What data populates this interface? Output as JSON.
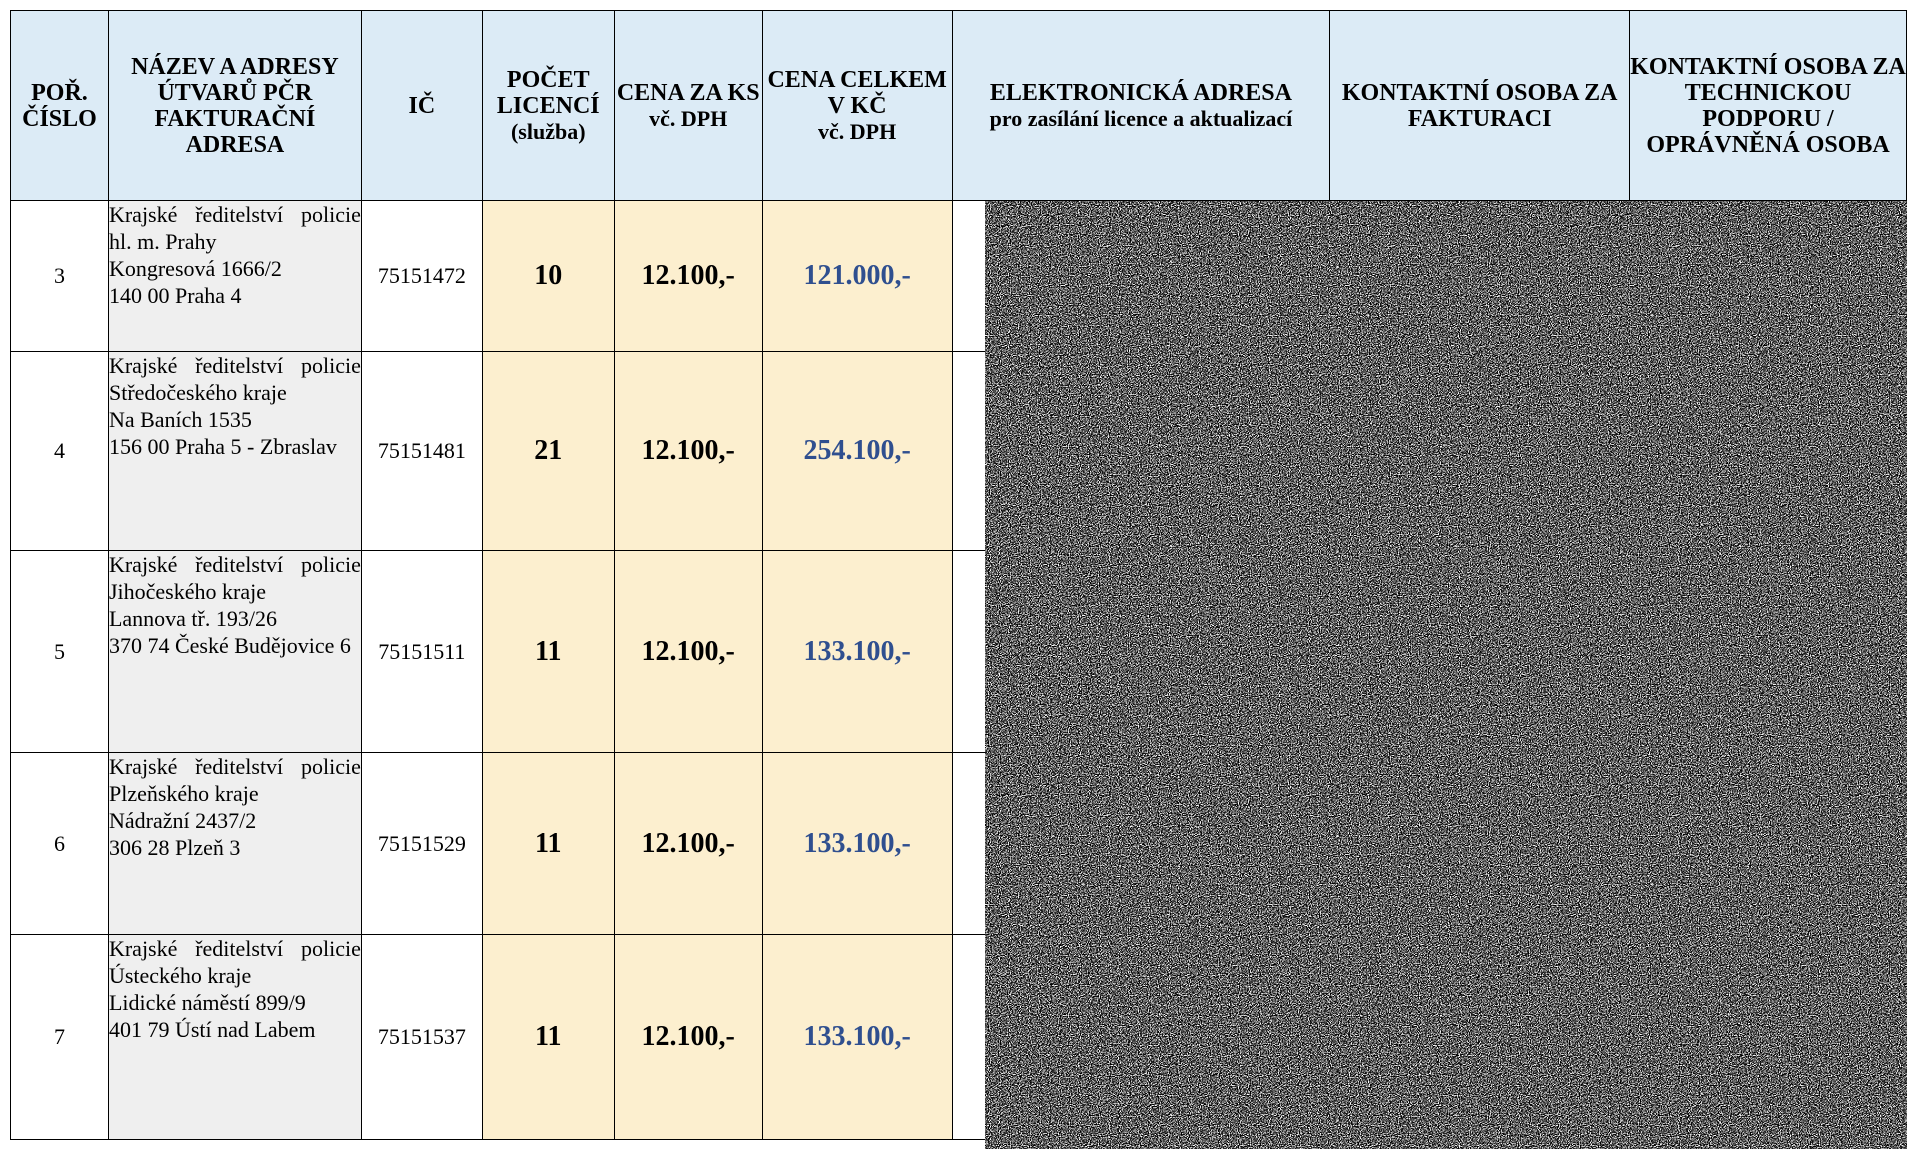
{
  "headers": {
    "order": "POŘ. ČÍSLO",
    "name": "NÁZEV A ADRESY ÚTVARŮ PČR FAKTURAČNÍ ADRESA",
    "ic": "IČ",
    "count": "POČET LICENCÍ",
    "count_sub": "(služba)",
    "price": "CENA ZA KS",
    "price_sub": "vč. DPH",
    "total": "CENA CELKEM V KČ",
    "total_sub": "vč. DPH",
    "email": "ELEKTRONICKÁ ADRESA",
    "email_sub": "pro zasílání licence a aktualizací",
    "contact_billing": "KONTAKTNÍ OSOBA ZA FAKTURACI",
    "contact_tech": "KONTAKTNÍ OSOBA ZA TECHNICKOU PODPORU / OPRÁVNĚNÁ OSOBA"
  },
  "rows": [
    {
      "order": "3",
      "address": [
        "Krajské ředitelství policie hl. m. Prahy",
        "Kongresová 1666/2",
        "140 00 Praha 4"
      ],
      "ic": "75151472",
      "count": "10",
      "price": "12.100,-",
      "total": "121.000,-"
    },
    {
      "order": "4",
      "address": [
        "Krajské ředitelství policie Středočeského kraje",
        "Na Baních 1535",
        "156 00 Praha 5 - Zbraslav"
      ],
      "ic": "75151481",
      "count": "21",
      "price": "12.100,-",
      "total": "254.100,-"
    },
    {
      "order": "5",
      "address": [
        "Krajské ředitelství policie Jihočeského kraje",
        "Lannova tř. 193/26",
        "370 74 České Budějovice 6"
      ],
      "ic": "75151511",
      "count": "11",
      "price": "12.100,-",
      "total": "133.100,-"
    },
    {
      "order": "6",
      "address": [
        "Krajské ředitelství policie Plzeňského kraje",
        "Nádražní 2437/2",
        "306 28 Plzeň 3"
      ],
      "ic": "75151529",
      "count": "11",
      "price": "12.100,-",
      "total": "133.100,-"
    },
    {
      "order": "7",
      "address": [
        "Krajské ředitelství policie Ústeckého kraje",
        "Lidické náměstí 899/9",
        "401 79 Ústí nad Labem"
      ],
      "ic": "75151537",
      "count": "11",
      "price": "12.100,-",
      "total": "133.100,-"
    }
  ],
  "colors": {
    "header_bg": "#dcebf6",
    "address_bg": "#efefef",
    "value_bg": "#fcefcf",
    "total_text": "#2f4f8f"
  },
  "redaction": "noise-pattern"
}
